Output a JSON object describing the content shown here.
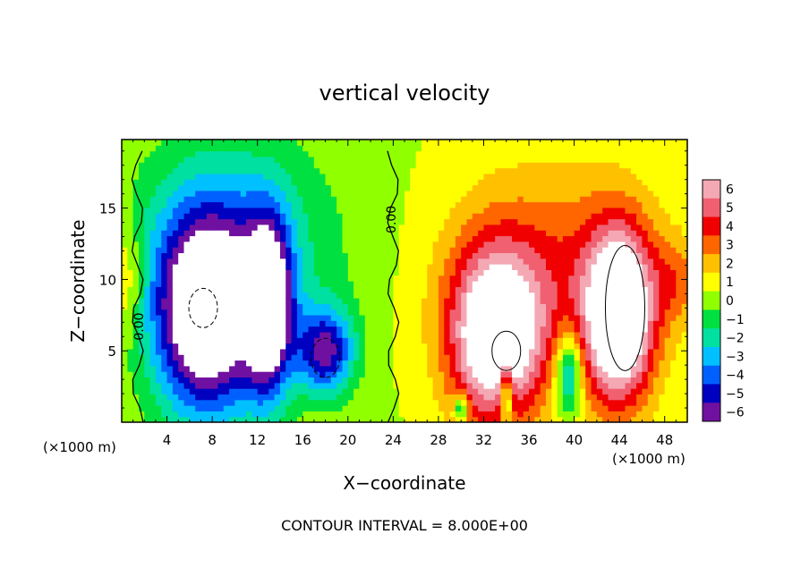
{
  "chart_data": {
    "type": "heatmap",
    "title": "vertical velocity",
    "xlabel": "X−coordinate",
    "ylabel": "Z−coordinate",
    "x_unit_left": "(×1000 m)",
    "x_unit_right": "(×1000 m)",
    "footer": "CONTOUR INTERVAL = 8.000E+00",
    "contour_zero_label": "0.00",
    "xlim": [
      0,
      50
    ],
    "ylim": [
      0,
      19.8
    ],
    "x_ticks": [
      4,
      8,
      12,
      16,
      20,
      24,
      28,
      32,
      36,
      40,
      44,
      48
    ],
    "y_ticks": [
      5,
      10,
      15
    ],
    "colorbar": {
      "ticks": [
        6,
        5,
        4,
        3,
        2,
        1,
        0,
        -1,
        -2,
        -3,
        -4,
        -5,
        -6
      ],
      "colors": [
        "#f4a8b4",
        "#f06070",
        "#f00000",
        "#ff6600",
        "#ffc000",
        "#ffff00",
        "#90ff00",
        "#00e040",
        "#00e0a0",
        "#00c0ff",
        "#0060ff",
        "#0000c0",
        "#7010a0"
      ]
    },
    "blobs": [
      {
        "x": 7.5,
        "z": 7.5,
        "rx": 4.5,
        "rz": 7,
        "w": -9
      },
      {
        "x": 13,
        "z": 8,
        "rx": 2,
        "rz": 6,
        "w": -8
      },
      {
        "x": 18,
        "z": 5,
        "rx": 2.5,
        "rz": 3,
        "w": -6
      },
      {
        "x": 10,
        "z": 12,
        "rx": 9,
        "rz": 8,
        "w": -3
      },
      {
        "x": 33,
        "z": 6,
        "rx": 4,
        "rz": 6,
        "w": 8
      },
      {
        "x": 44,
        "z": 7.5,
        "rx": 3,
        "rz": 6,
        "w": 9
      },
      {
        "x": 38,
        "z": 10,
        "rx": 9,
        "rz": 8,
        "w": 3
      },
      {
        "x": 39.5,
        "z": 3.5,
        "rx": 1.2,
        "rz": 3,
        "w": -5
      },
      {
        "x": 34,
        "z": 2,
        "rx": 0.6,
        "rz": 2,
        "w": -5
      },
      {
        "x": 30,
        "z": 1,
        "rx": 0.6,
        "rz": 1,
        "w": -4
      },
      {
        "x": 49,
        "z": 10,
        "rx": 2,
        "rz": 3,
        "w": 2
      },
      {
        "x": 0.5,
        "z": 10,
        "rx": 1.5,
        "rz": 4,
        "w": 2
      }
    ]
  }
}
